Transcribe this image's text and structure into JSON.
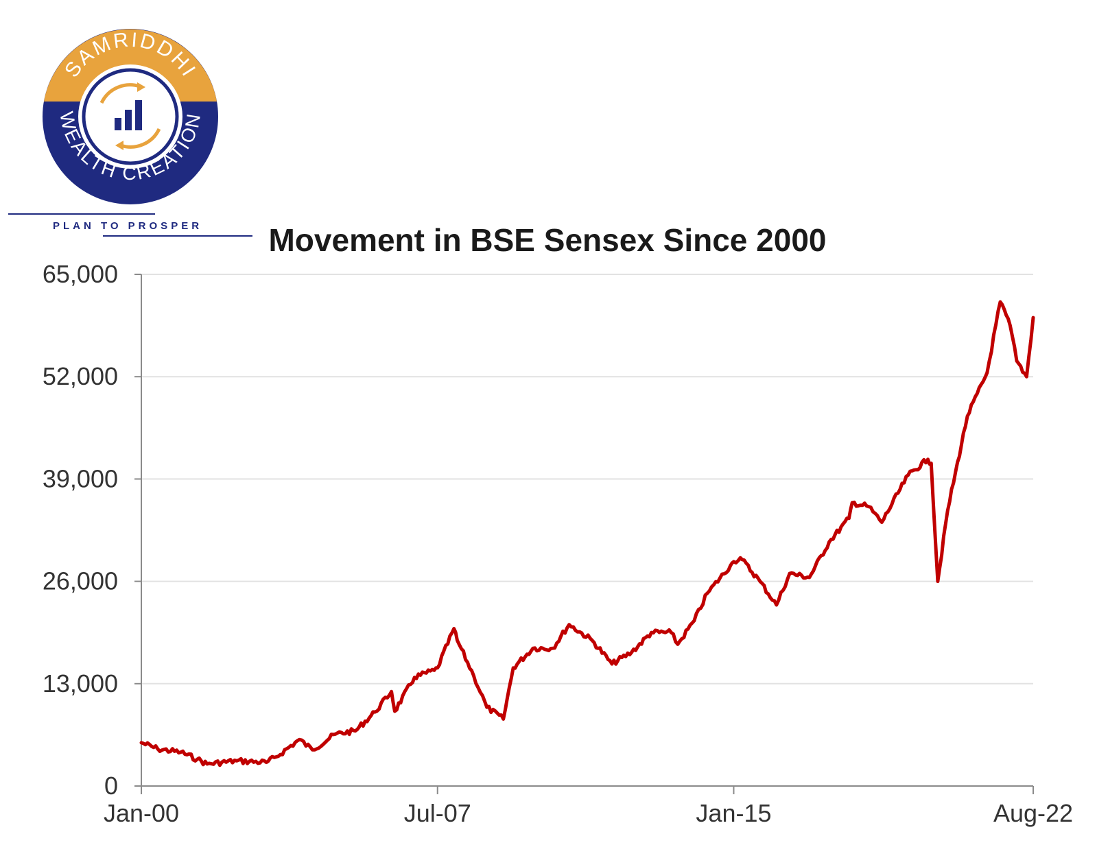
{
  "brand": {
    "name_top": "SAMRIDDHI",
    "name_bottom": "WEALTH CREATION",
    "tagline": "PLAN TO PROSPER",
    "navy": "#1f2a80",
    "orange": "#e8a33d",
    "icon": "bar-chart-cycle-icon"
  },
  "chart_data": {
    "type": "line",
    "title": "Movement in BSE Sensex Since 2000",
    "xlabel": "",
    "ylabel": "",
    "x_range": [
      "2000-01",
      "2022-08"
    ],
    "ylim": [
      0,
      65000
    ],
    "y_ticks": [
      0,
      13000,
      26000,
      39000,
      52000,
      65000
    ],
    "y_tick_labels": [
      "0",
      "13,000",
      "26,000",
      "39,000",
      "52,000",
      "65,000"
    ],
    "x_ticks": [
      "2000-01",
      "2007-07",
      "2015-01",
      "2022-08"
    ],
    "x_tick_labels": [
      "Jan-00",
      "Jul-07",
      "Jan-15",
      "Aug-22"
    ],
    "grid": true,
    "legend": "none",
    "line_color": "#c00000",
    "series": [
      {
        "x": [
          "2000-01",
          "2000-06",
          "2001-01",
          "2001-06",
          "2001-09",
          "2002-06",
          "2003-03",
          "2003-06",
          "2004-01",
          "2004-05",
          "2004-12",
          "2005-06",
          "2005-12",
          "2006-05",
          "2006-06",
          "2006-12",
          "2007-06",
          "2007-07",
          "2007-12",
          "2008-01",
          "2008-06",
          "2008-10",
          "2009-03",
          "2009-06",
          "2009-12",
          "2010-06",
          "2010-11",
          "2011-06",
          "2011-12",
          "2012-06",
          "2012-12",
          "2013-06",
          "2013-08",
          "2014-01",
          "2014-05",
          "2014-12",
          "2015-01",
          "2015-03",
          "2015-09",
          "2016-02",
          "2016-06",
          "2016-12",
          "2017-06",
          "2017-12",
          "2018-01",
          "2018-06",
          "2018-10",
          "2019-06",
          "2019-12",
          "2020-01",
          "2020-03",
          "2020-06",
          "2020-12",
          "2021-06",
          "2021-10",
          "2022-01",
          "2022-03",
          "2022-06",
          "2022-08"
        ],
        "y": [
          5500,
          4700,
          4300,
          3400,
          2800,
          3200,
          3000,
          3700,
          5900,
          4600,
          6600,
          7000,
          9400,
          12000,
          9500,
          13800,
          14700,
          15000,
          20000,
          18500,
          14000,
          10000,
          8500,
          15000,
          17500,
          17500,
          20500,
          18500,
          15500,
          17000,
          19500,
          19500,
          18000,
          21000,
          24500,
          28000,
          28500,
          29000,
          26000,
          23000,
          27000,
          26500,
          31000,
          34000,
          36000,
          35500,
          33500,
          39500,
          41500,
          41000,
          26000,
          35000,
          47000,
          52500,
          61500,
          58500,
          54000,
          52000,
          59500
        ]
      }
    ]
  }
}
